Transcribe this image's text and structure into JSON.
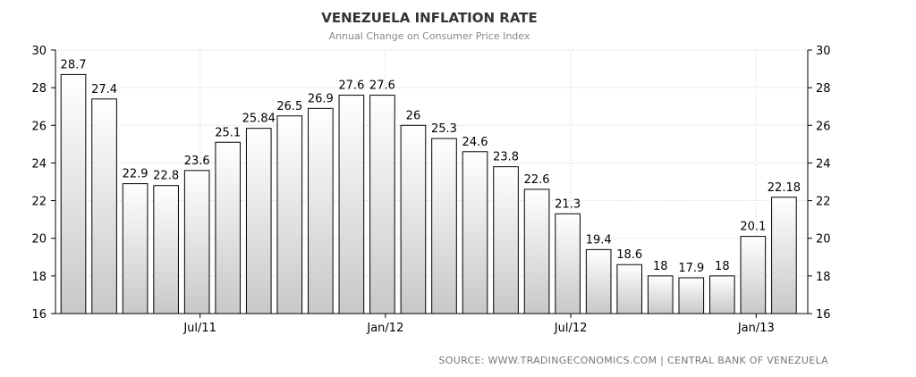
{
  "chart_data": {
    "type": "bar",
    "title": "VENEZUELA INFLATION RATE",
    "subtitle": "Annual Change on Consumer Price Index",
    "source": "SOURCE: WWW.TRADINGECONOMICS.COM | CENTRAL BANK OF VENEZUELA",
    "values": [
      28.7,
      27.4,
      22.9,
      22.8,
      23.6,
      25.1,
      25.84,
      26.5,
      26.9,
      27.6,
      27.6,
      26,
      25.3,
      24.6,
      23.8,
      22.6,
      21.3,
      19.4,
      18.6,
      18,
      17.9,
      18,
      20.1,
      22.18
    ],
    "labels": [
      "28.7",
      "27.4",
      "22.9",
      "22.8",
      "23.6",
      "25.1",
      "25.84",
      "26.5",
      "26.9",
      "27.6",
      "27.6",
      "26",
      "25.3",
      "24.6",
      "23.8",
      "22.6",
      "21.3",
      "19.4",
      "18.6",
      "18",
      "17.9",
      "18",
      "20.1",
      "22.18"
    ],
    "x_ticks": [
      {
        "label": "Jul/11",
        "index": 4.5
      },
      {
        "label": "Jan/12",
        "index": 10.5
      },
      {
        "label": "Jul/12",
        "index": 16.5
      },
      {
        "label": "Jan/13",
        "index": 22.5
      }
    ],
    "y_ticks": [
      16,
      18,
      20,
      22,
      24,
      26,
      28,
      30
    ],
    "ylim": [
      16,
      30
    ],
    "grid": true,
    "colors": {
      "bar_top": "#ffffff",
      "bar_bottom": "#c8c8c8",
      "bar_stroke": "#000000",
      "grid": "#cccccc",
      "axis": "#000000"
    }
  }
}
